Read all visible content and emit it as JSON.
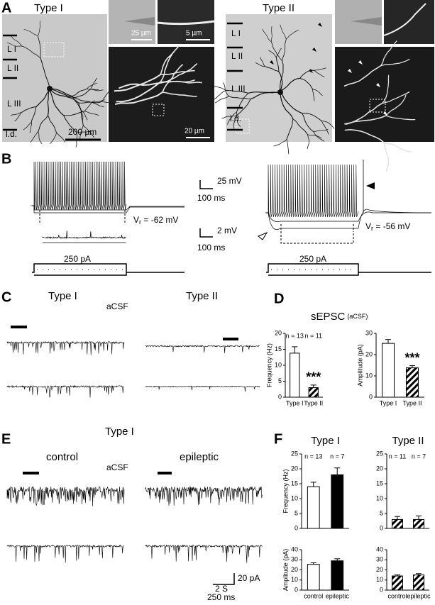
{
  "panels": {
    "A": {
      "label": "A",
      "left": {
        "title": "Type I",
        "layers": [
          "L I",
          "L II",
          "L III",
          "l.d."
        ],
        "scale": "200 µm",
        "inset_scales": [
          "25 µm",
          "5 µm"
        ],
        "detail_scale": "20 µm"
      },
      "right": {
        "title": "Type II",
        "layers": [
          "L I",
          "L II",
          "L III",
          "l.d."
        ]
      }
    },
    "B": {
      "label": "B",
      "scales": [
        "25 mV",
        "100 ms",
        "2 mV",
        "100 ms"
      ],
      "left": {
        "vrest": [
          "V",
          "r",
          " = -62 mV"
        ],
        "current": "250 pA"
      },
      "right": {
        "vrest": [
          "V",
          "r",
          " = -56 mV"
        ],
        "current": "250 pA"
      }
    },
    "C": {
      "label": "C",
      "left_title": "Type I",
      "condition": "aCSF",
      "right_title": "Type II"
    },
    "D": {
      "label": "D",
      "title": "sEPSC",
      "subtitle": "(aCSF)"
    },
    "E": {
      "label": "E",
      "title": "Type I",
      "left_title": "control",
      "condition": "aCSF",
      "right_title": "epileptic",
      "scales": [
        "20 pA",
        "2 S",
        "250 ms"
      ]
    },
    "F": {
      "label": "F"
    }
  },
  "chart_data": [
    {
      "type": "bar",
      "ylabel": "Frequency (Hz)",
      "categories": [
        "Type I",
        "Type II"
      ],
      "values": [
        13.8,
        3
      ],
      "errors": [
        2,
        0.8
      ],
      "ylim": [
        0,
        20
      ],
      "yticks": [
        0,
        5,
        10,
        15,
        20
      ],
      "annotations": [
        "n = 13",
        "n = 11"
      ],
      "significance": "***",
      "patterns": [
        "open",
        "hatched"
      ]
    },
    {
      "type": "bar",
      "ylabel": "Amplitude (pA)",
      "categories": [
        "Type I",
        "Type II"
      ],
      "values": [
        25.3,
        13.8
      ],
      "errors": [
        1.8,
        1
      ],
      "ylim": [
        0,
        30
      ],
      "yticks": [
        0,
        10,
        20,
        30
      ],
      "significance": "***",
      "patterns": [
        "open",
        "hatched"
      ]
    },
    {
      "type": "bar",
      "title": "Type I",
      "ylabel": "Frequency (Hz)",
      "categories": [
        null,
        null
      ],
      "values": [
        14,
        18
      ],
      "errors": [
        1.5,
        2.3
      ],
      "ylim": [
        0,
        25
      ],
      "yticks": [
        0,
        5,
        10,
        15,
        20,
        25
      ],
      "annotations": [
        "n = 13",
        "n = 7"
      ],
      "patterns": [
        "open",
        "solid"
      ]
    },
    {
      "type": "bar",
      "title": "Type II",
      "categories": [
        null,
        null
      ],
      "values": [
        3,
        3
      ],
      "errors": [
        1,
        1.2
      ],
      "ylim": [
        0,
        25
      ],
      "yticks": [
        0,
        5,
        10,
        15,
        20,
        25
      ],
      "annotations": [
        "n = 11",
        "n = 7"
      ],
      "patterns": [
        "hatched",
        "hatched"
      ]
    },
    {
      "type": "bar",
      "ylabel": "Amplitude (pA)",
      "categories": [
        "control",
        "epileptic"
      ],
      "values": [
        25.5,
        29
      ],
      "errors": [
        1.5,
        2
      ],
      "ylim": [
        0,
        40
      ],
      "yticks": [
        0,
        10,
        20,
        30,
        40
      ],
      "patterns": [
        "open",
        "solid"
      ]
    },
    {
      "type": "bar",
      "categories": [
        "control",
        "epileptic"
      ],
      "values": [
        14,
        15
      ],
      "errors": [
        1,
        1.3
      ],
      "ylim": [
        0,
        40
      ],
      "yticks": [
        0,
        10,
        20,
        30,
        40
      ],
      "patterns": [
        "hatched",
        "hatched"
      ]
    }
  ]
}
